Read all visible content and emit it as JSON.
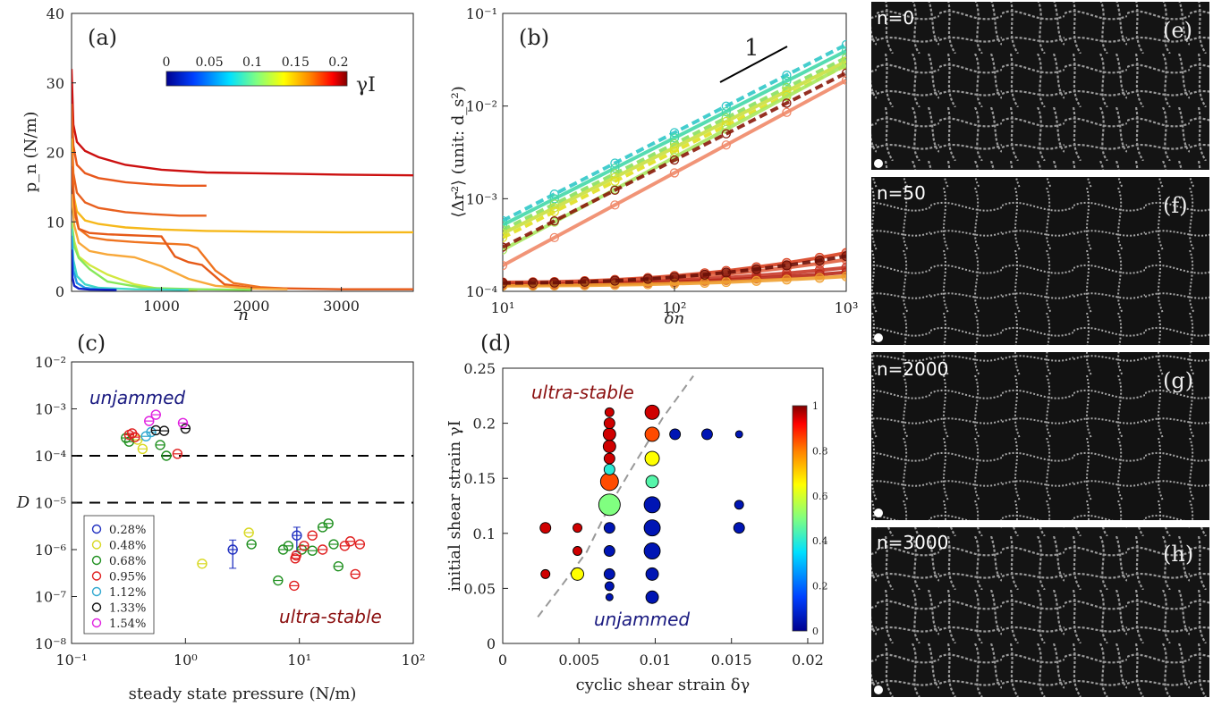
{
  "figure": "four-panel figure with photo strip",
  "chart_data": [
    {
      "id": "a",
      "type": "line",
      "panel_label": "(a)",
      "xlabel": "n",
      "ylabel": "p_n (N/m)",
      "xlim": [
        0,
        3800
      ],
      "ylim": [
        0,
        40
      ],
      "xticks": [
        1000,
        2000,
        3000
      ],
      "yticks": [
        0,
        10,
        20,
        30,
        40
      ],
      "colorbar": {
        "label": "γI",
        "ticks": [
          "0",
          "0.05",
          "0.1",
          "0.15",
          "0.2"
        ],
        "range": [
          0,
          0.21
        ]
      },
      "series": [
        {
          "gamma": 0.21,
          "color": "#cc1010",
          "x": [
            0,
            20,
            60,
            150,
            300,
            600,
            1000,
            1500,
            2000,
            2500,
            3000,
            3800
          ],
          "y": [
            32,
            24,
            21.5,
            20.2,
            19.3,
            18.2,
            17.5,
            17.1,
            17.0,
            16.9,
            16.8,
            16.7
          ]
        },
        {
          "gamma": 0.19,
          "color": "#e8581c",
          "x": [
            0,
            20,
            60,
            150,
            300,
            600,
            900,
            1200,
            1500
          ],
          "y": [
            27,
            21,
            18.2,
            17.0,
            16.3,
            15.7,
            15.4,
            15.2,
            15.2
          ]
        },
        {
          "gamma": 0.18,
          "color": "#e8601e",
          "x": [
            0,
            20,
            60,
            150,
            300,
            600,
            900,
            1200,
            1500
          ],
          "y": [
            24,
            17,
            14.2,
            12.8,
            12.0,
            11.4,
            11.1,
            10.9,
            10.9
          ]
        },
        {
          "gamma": 0.17,
          "color": "#f6b81a",
          "x": [
            0,
            20,
            60,
            150,
            300,
            600,
            1000,
            1500,
            2000,
            3000,
            3800
          ],
          "y": [
            22,
            14,
            11.5,
            10.2,
            9.7,
            9.2,
            8.9,
            8.7,
            8.6,
            8.5,
            8.5
          ]
        },
        {
          "gamma": 0.16,
          "color": "#ef7420",
          "x": [
            0,
            30,
            80,
            200,
            400,
            700,
            1000,
            1150,
            1300,
            1400,
            1500,
            1600,
            1800,
            2100,
            2400
          ],
          "y": [
            20,
            12.5,
            9.0,
            7.8,
            7.4,
            7.1,
            6.9,
            6.8,
            6.7,
            6.2,
            4.6,
            3.0,
            1.2,
            0.6,
            0.4
          ]
        },
        {
          "gamma": 0.15,
          "color": "#e65a18",
          "x": [
            0,
            30,
            80,
            200,
            400,
            600,
            800,
            1000,
            1150,
            1300,
            1450,
            1700,
            2000,
            3000,
            3800
          ],
          "y": [
            18,
            11.5,
            9.0,
            8.4,
            8.2,
            8.1,
            8.0,
            7.9,
            5.0,
            4.2,
            3.8,
            1.0,
            0.5,
            0.3,
            0.3
          ]
        },
        {
          "gamma": 0.12,
          "color": "#f8a83a",
          "x": [
            0,
            30,
            80,
            200,
            400,
            700,
            1000,
            1300,
            1600,
            2000,
            2400
          ],
          "y": [
            14,
            9.5,
            7.0,
            5.8,
            5.3,
            4.9,
            3.6,
            1.8,
            0.8,
            0.4,
            0.3
          ]
        },
        {
          "gamma": 0.1,
          "color": "#d2e840",
          "x": [
            0,
            30,
            80,
            200,
            400,
            700,
            1000,
            1400
          ],
          "y": [
            10,
            7.2,
            5.0,
            3.8,
            2.4,
            1.0,
            0.3,
            0.2
          ]
        },
        {
          "gamma": 0.08,
          "color": "#86e85a",
          "x": [
            0,
            30,
            80,
            200,
            400,
            800,
            1400,
            2000
          ],
          "y": [
            10,
            6.5,
            4.8,
            3.2,
            1.4,
            0.5,
            0.3,
            0.2
          ]
        },
        {
          "gamma": 0.06,
          "color": "#40d8c8",
          "x": [
            0,
            20,
            60,
            150,
            300,
            700,
            1300
          ],
          "y": [
            9,
            4.5,
            2.2,
            1.0,
            0.5,
            0.3,
            0.2
          ]
        },
        {
          "gamma": 0.05,
          "color": "#2098e8",
          "x": [
            0,
            20,
            60,
            150,
            300,
            500
          ],
          "y": [
            8,
            3.0,
            1.2,
            0.5,
            0.3,
            0.2
          ]
        },
        {
          "gamma": 0.02,
          "color": "#1020c8",
          "x": [
            0,
            10,
            30,
            80,
            200,
            500
          ],
          "y": [
            6,
            2.0,
            0.8,
            0.4,
            0.25,
            0.2
          ]
        }
      ]
    },
    {
      "id": "b",
      "type": "line",
      "panel_label": "(b)",
      "xlabel": "δn",
      "ylabel": "⟨Δr²⟩ (unit: d_s²)",
      "xscale": "log",
      "yscale": "log",
      "xlim": [
        10,
        1000
      ],
      "ylim": [
        0.0001,
        0.1
      ],
      "xticks": [
        "10¹",
        "10²",
        "10³"
      ],
      "yticks": [
        "10⁻⁴",
        "10⁻³",
        "10⁻²",
        "10⁻¹"
      ],
      "slope_annotation": "1",
      "upper_family": [
        {
          "color": "#30c8c8",
          "y10": 0.00058,
          "slope": 0.95
        },
        {
          "color": "#44d8a8",
          "y10": 0.00052,
          "slope": 0.94
        },
        {
          "color": "#88e060",
          "y10": 0.00046,
          "slope": 0.93
        },
        {
          "color": "#c8e040",
          "y10": 0.00042,
          "slope": 0.93
        },
        {
          "color": "#e0e020",
          "y10": 0.00038,
          "slope": 0.93
        },
        {
          "color": "#a8e860",
          "y10": 0.00028,
          "slope": 1.0
        },
        {
          "color": "#8a1a0a",
          "y10": 0.0003,
          "slope": 0.94
        },
        {
          "color": "#f08868",
          "y10": 0.00019,
          "slope": 1.0
        }
      ],
      "lower_family": [
        {
          "color": "#d84020",
          "y10": 0.000125,
          "y1000": 0.00026
        },
        {
          "color": "#e06040",
          "y10": 0.000122,
          "y1000": 0.00022
        },
        {
          "color": "#c83828",
          "y10": 0.00012,
          "y1000": 0.00018
        },
        {
          "color": "#b82818",
          "y10": 0.000118,
          "y1000": 0.00016
        },
        {
          "color": "#f0a030",
          "y10": 0.000115,
          "y1000": 0.000145
        },
        {
          "color": "#6a1008",
          "y10": 0.000123,
          "y1000": 0.00024
        }
      ]
    },
    {
      "id": "c",
      "type": "scatter",
      "panel_label": "(c)",
      "xlabel": "steady state pressure (N/m)",
      "ylabel": "D",
      "xscale": "log",
      "yscale": "log",
      "xlim": [
        0.1,
        100
      ],
      "ylim": [
        1e-08,
        0.01
      ],
      "xticks": [
        "10⁻¹",
        "10⁰",
        "10¹",
        "10²"
      ],
      "yticks": [
        "10⁻⁸",
        "10⁻⁷",
        "10⁻⁶",
        "10⁻⁵",
        "10⁻⁴",
        "10⁻³",
        "10⁻²"
      ],
      "thresholds": [
        0.0001,
        1e-05
      ],
      "annotations": {
        "unjammed": "unjammed",
        "ultra_stable": "ultra-stable"
      },
      "legend": [
        {
          "label": "0.28%",
          "color": "#2030c0"
        },
        {
          "label": "0.48%",
          "color": "#d8d820"
        },
        {
          "label": "0.68%",
          "color": "#209020"
        },
        {
          "label": "0.95%",
          "color": "#e02020"
        },
        {
          "label": "1.12%",
          "color": "#30a8d0"
        },
        {
          "label": "1.33%",
          "color": "#111111"
        },
        {
          "label": "1.54%",
          "color": "#e020e0"
        }
      ],
      "points": [
        {
          "s": 0,
          "x": 2.6,
          "y": 1e-06
        },
        {
          "s": 0,
          "x": 9.5,
          "y": 2e-06
        },
        {
          "s": 1,
          "x": 1.4,
          "y": 5e-07
        },
        {
          "s": 1,
          "x": 3.6,
          "y": 2.3e-06
        },
        {
          "s": 1,
          "x": 0.42,
          "y": 0.00014
        },
        {
          "s": 1,
          "x": 0.38,
          "y": 0.00022
        },
        {
          "s": 2,
          "x": 3.8,
          "y": 1.3e-06
        },
        {
          "s": 2,
          "x": 6.5,
          "y": 2.2e-07
        },
        {
          "s": 2,
          "x": 7.2,
          "y": 1e-06
        },
        {
          "s": 2,
          "x": 8.0,
          "y": 1.2e-06
        },
        {
          "s": 2,
          "x": 10.5,
          "y": 1e-06
        },
        {
          "s": 2,
          "x": 13,
          "y": 9.5e-07
        },
        {
          "s": 2,
          "x": 16,
          "y": 3e-06
        },
        {
          "s": 2,
          "x": 18,
          "y": 3.6e-06
        },
        {
          "s": 2,
          "x": 20,
          "y": 1.3e-06
        },
        {
          "s": 2,
          "x": 22,
          "y": 4.4e-07
        },
        {
          "s": 2,
          "x": 0.3,
          "y": 0.00024
        },
        {
          "s": 2,
          "x": 0.32,
          "y": 0.0002
        },
        {
          "s": 2,
          "x": 0.68,
          "y": 0.0001
        },
        {
          "s": 2,
          "x": 0.6,
          "y": 0.00017
        },
        {
          "s": 3,
          "x": 9.2,
          "y": 6.5e-07
        },
        {
          "s": 3,
          "x": 9.4,
          "y": 7.5e-07
        },
        {
          "s": 3,
          "x": 11,
          "y": 1.2e-06
        },
        {
          "s": 3,
          "x": 13,
          "y": 2e-06
        },
        {
          "s": 3,
          "x": 16,
          "y": 1e-06
        },
        {
          "s": 3,
          "x": 25,
          "y": 1.2e-06
        },
        {
          "s": 3,
          "x": 28,
          "y": 1.5e-06
        },
        {
          "s": 3,
          "x": 34,
          "y": 1.3e-06
        },
        {
          "s": 3,
          "x": 31,
          "y": 3e-07
        },
        {
          "s": 3,
          "x": 9.0,
          "y": 1.7e-07
        },
        {
          "s": 3,
          "x": 0.32,
          "y": 0.00028
        },
        {
          "s": 3,
          "x": 0.34,
          "y": 0.0003
        },
        {
          "s": 3,
          "x": 0.36,
          "y": 0.00025
        },
        {
          "s": 3,
          "x": 0.85,
          "y": 0.00011
        },
        {
          "s": 4,
          "x": 0.45,
          "y": 0.00026
        },
        {
          "s": 4,
          "x": 0.5,
          "y": 0.00032
        },
        {
          "s": 5,
          "x": 0.55,
          "y": 0.00035
        },
        {
          "s": 5,
          "x": 0.65,
          "y": 0.00034
        },
        {
          "s": 5,
          "x": 1.0,
          "y": 0.00038
        },
        {
          "s": 6,
          "x": 0.48,
          "y": 0.00055
        },
        {
          "s": 6,
          "x": 0.55,
          "y": 0.00075
        },
        {
          "s": 6,
          "x": 0.95,
          "y": 0.0005
        }
      ],
      "errorbars": [
        {
          "s": 0,
          "x": 2.6,
          "y": 1e-06,
          "lo": 4e-07,
          "hi": 1.6e-06
        },
        {
          "s": 0,
          "x": 9.5,
          "y": 2e-06,
          "lo": 9e-07,
          "hi": 3e-06
        }
      ]
    },
    {
      "id": "d",
      "type": "scatter",
      "panel_label": "(d)",
      "xlabel": "cyclic shear strain δγ",
      "ylabel": "initial shear strain γI",
      "xlim": [
        0,
        0.021
      ],
      "ylim": [
        0,
        0.25
      ],
      "xticks": [
        "0",
        "0.005",
        "0.01",
        "0.015",
        "0.02"
      ],
      "yticks": [
        "0",
        "0.05",
        "0.1",
        "0.15",
        "0.2",
        "0.25"
      ],
      "colorbar": {
        "ticks": [
          "0",
          "0.2",
          "0.4",
          "0.6",
          "0.8",
          "1"
        ],
        "range": [
          0,
          1
        ]
      },
      "annotations": {
        "ultra_stable": "ultra-stable",
        "unjammed": "unjammed"
      },
      "boundary_curve": {
        "x": [
          0.0023,
          0.004,
          0.0055,
          0.007,
          0.0085,
          0.0105,
          0.0125
        ],
        "y": [
          0.024,
          0.055,
          0.083,
          0.125,
          0.16,
          0.205,
          0.243
        ]
      },
      "points": [
        {
          "x": 0.0028,
          "y": 0.063,
          "v": 0.95,
          "r": 5
        },
        {
          "x": 0.0028,
          "y": 0.105,
          "v": 0.95,
          "r": 6
        },
        {
          "x": 0.0049,
          "y": 0.063,
          "v": 0.65,
          "r": 7
        },
        {
          "x": 0.0049,
          "y": 0.084,
          "v": 0.95,
          "r": 5
        },
        {
          "x": 0.0049,
          "y": 0.105,
          "v": 0.95,
          "r": 5
        },
        {
          "x": 0.007,
          "y": 0.042,
          "v": 0.05,
          "r": 4
        },
        {
          "x": 0.007,
          "y": 0.052,
          "v": 0.05,
          "r": 5
        },
        {
          "x": 0.007,
          "y": 0.063,
          "v": 0.05,
          "r": 6
        },
        {
          "x": 0.007,
          "y": 0.084,
          "v": 0.05,
          "r": 6
        },
        {
          "x": 0.007,
          "y": 0.105,
          "v": 0.05,
          "r": 6
        },
        {
          "x": 0.007,
          "y": 0.126,
          "v": 0.5,
          "r": 12
        },
        {
          "x": 0.007,
          "y": 0.147,
          "v": 0.85,
          "r": 10
        },
        {
          "x": 0.007,
          "y": 0.158,
          "v": 0.4,
          "r": 6
        },
        {
          "x": 0.007,
          "y": 0.168,
          "v": 0.95,
          "r": 6
        },
        {
          "x": 0.007,
          "y": 0.179,
          "v": 0.95,
          "r": 7
        },
        {
          "x": 0.007,
          "y": 0.19,
          "v": 0.95,
          "r": 7
        },
        {
          "x": 0.007,
          "y": 0.2,
          "v": 0.95,
          "r": 6
        },
        {
          "x": 0.007,
          "y": 0.21,
          "v": 0.95,
          "r": 5
        },
        {
          "x": 0.0098,
          "y": 0.042,
          "v": 0.05,
          "r": 7
        },
        {
          "x": 0.0098,
          "y": 0.063,
          "v": 0.05,
          "r": 7
        },
        {
          "x": 0.0098,
          "y": 0.084,
          "v": 0.05,
          "r": 9
        },
        {
          "x": 0.0098,
          "y": 0.105,
          "v": 0.05,
          "r": 9
        },
        {
          "x": 0.0098,
          "y": 0.126,
          "v": 0.05,
          "r": 9
        },
        {
          "x": 0.0098,
          "y": 0.147,
          "v": 0.45,
          "r": 7
        },
        {
          "x": 0.0098,
          "y": 0.168,
          "v": 0.65,
          "r": 8
        },
        {
          "x": 0.0098,
          "y": 0.19,
          "v": 0.85,
          "r": 8
        },
        {
          "x": 0.0098,
          "y": 0.21,
          "v": 0.95,
          "r": 8
        },
        {
          "x": 0.0113,
          "y": 0.19,
          "v": 0.05,
          "r": 6
        },
        {
          "x": 0.0134,
          "y": 0.19,
          "v": 0.05,
          "r": 6
        },
        {
          "x": 0.0155,
          "y": 0.19,
          "v": 0.05,
          "r": 4
        },
        {
          "x": 0.0155,
          "y": 0.126,
          "v": 0.05,
          "r": 5
        },
        {
          "x": 0.0155,
          "y": 0.105,
          "v": 0.05,
          "r": 6
        }
      ]
    }
  ],
  "photos": [
    {
      "label": "n=0",
      "panel_label": "(e)"
    },
    {
      "label": "n=50",
      "panel_label": "(f)"
    },
    {
      "label": "n=2000",
      "panel_label": "(g)"
    },
    {
      "label": "n=3000",
      "panel_label": "(h)"
    }
  ]
}
